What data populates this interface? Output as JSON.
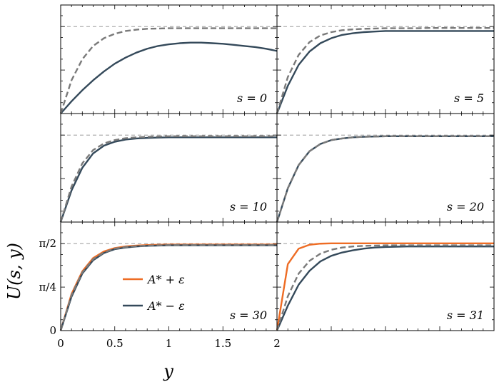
{
  "chart_data": {
    "type": "line",
    "xlabel": "y",
    "ylabel": "U(s, y)",
    "xlim": [
      0,
      2
    ],
    "ylim": [
      0,
      1.96
    ],
    "x_ticks": [
      {
        "value": 0,
        "label": "0"
      },
      {
        "value": 0.5,
        "label": "0.5"
      },
      {
        "value": 1,
        "label": "1"
      },
      {
        "value": 1.5,
        "label": "1.5"
      },
      {
        "value": 2,
        "label": "2"
      }
    ],
    "y_ticks": [
      {
        "value": 0,
        "label": "0"
      },
      {
        "value": 0.785,
        "label": "π/4"
      },
      {
        "value": 1.571,
        "label": "π/2"
      }
    ],
    "reference_line": 1.571,
    "colors": {
      "plus": "#ee6c24",
      "minus": "#34495a",
      "dashed": "#7a7a7a",
      "reference": "#8a8a8a"
    },
    "legend": {
      "placement": "lower-left of bottom-left panel",
      "entries": [
        {
          "label": "A* + ε",
          "color": "#ee6c24"
        },
        {
          "label": "A* − ε",
          "color": "#34495a"
        }
      ]
    },
    "x": [
      0,
      0.1,
      0.2,
      0.3,
      0.4,
      0.5,
      0.6,
      0.7,
      0.8,
      0.9,
      1.0,
      1.1,
      1.2,
      1.3,
      1.4,
      1.5,
      1.6,
      1.7,
      1.8,
      1.9,
      2.0
    ],
    "panels": [
      {
        "label": "s = 0",
        "series": [
          {
            "name": "A* − ε",
            "style": "solid",
            "values": [
              0,
              0.22,
              0.42,
              0.6,
              0.76,
              0.9,
              1.01,
              1.1,
              1.17,
              1.22,
              1.25,
              1.27,
              1.28,
              1.28,
              1.27,
              1.26,
              1.24,
              1.22,
              1.2,
              1.17,
              1.13
            ]
          },
          {
            "style": "dashed",
            "values": [
              0,
              0.6,
              0.98,
              1.22,
              1.36,
              1.44,
              1.49,
              1.515,
              1.53,
              1.535,
              1.54,
              1.54,
              1.54,
              1.54,
              1.54,
              1.54,
              1.54,
              1.54,
              1.54,
              1.54,
              1.54
            ]
          }
        ]
      },
      {
        "label": "s = 5",
        "series": [
          {
            "name": "A* − ε",
            "style": "solid",
            "values": [
              0,
              0.5,
              0.88,
              1.12,
              1.27,
              1.36,
              1.42,
              1.45,
              1.47,
              1.48,
              1.49,
              1.49,
              1.49,
              1.49,
              1.49,
              1.49,
              1.49,
              1.49,
              1.49,
              1.49,
              1.49
            ]
          },
          {
            "style": "dashed",
            "values": [
              0,
              0.66,
              1.06,
              1.29,
              1.41,
              1.47,
              1.505,
              1.52,
              1.53,
              1.535,
              1.54,
              1.54,
              1.54,
              1.54,
              1.545,
              1.545,
              1.545,
              1.545,
              1.545,
              1.545,
              1.545
            ]
          }
        ]
      },
      {
        "label": "s = 10",
        "series": [
          {
            "name": "A* − ε",
            "style": "solid",
            "values": [
              0,
              0.57,
              0.98,
              1.24,
              1.38,
              1.45,
              1.49,
              1.51,
              1.52,
              1.525,
              1.53,
              1.53,
              1.53,
              1.53,
              1.53,
              1.53,
              1.53,
              1.53,
              1.53,
              1.53,
              1.53
            ]
          },
          {
            "style": "dashed",
            "values": [
              0,
              0.64,
              1.06,
              1.3,
              1.42,
              1.48,
              1.515,
              1.53,
              1.54,
              1.545,
              1.55,
              1.55,
              1.55,
              1.55,
              1.55,
              1.55,
              1.55,
              1.55,
              1.55,
              1.55,
              1.55
            ]
          }
        ]
      },
      {
        "label": "s = 20",
        "series": [
          {
            "name": "A* − ε",
            "style": "solid",
            "values": [
              0,
              0.61,
              1.03,
              1.28,
              1.41,
              1.48,
              1.51,
              1.53,
              1.54,
              1.545,
              1.55,
              1.55,
              1.55,
              1.55,
              1.55,
              1.55,
              1.55,
              1.55,
              1.55,
              1.55,
              1.55
            ]
          },
          {
            "style": "dashed",
            "values": [
              0,
              0.61,
              1.03,
              1.28,
              1.41,
              1.48,
              1.51,
              1.53,
              1.54,
              1.545,
              1.55,
              1.55,
              1.55,
              1.55,
              1.55,
              1.55,
              1.55,
              1.55,
              1.55,
              1.55,
              1.55
            ]
          }
        ]
      },
      {
        "label": "s = 30",
        "series": [
          {
            "name": "A* + ε",
            "style": "solid",
            "values": [
              0,
              0.66,
              1.07,
              1.31,
              1.43,
              1.49,
              1.52,
              1.535,
              1.545,
              1.55,
              1.555,
              1.555,
              1.555,
              1.555,
              1.555,
              1.555,
              1.555,
              1.555,
              1.555,
              1.555,
              1.555
            ]
          },
          {
            "name": "A* − ε",
            "style": "solid",
            "values": [
              0,
              0.61,
              1.03,
              1.27,
              1.4,
              1.47,
              1.5,
              1.52,
              1.53,
              1.535,
              1.54,
              1.54,
              1.54,
              1.54,
              1.54,
              1.54,
              1.54,
              1.54,
              1.54,
              1.54,
              1.54
            ]
          },
          {
            "style": "dashed",
            "values": [
              0,
              0.64,
              1.05,
              1.29,
              1.41,
              1.48,
              1.51,
              1.525,
              1.535,
              1.54,
              1.545,
              1.545,
              1.545,
              1.545,
              1.545,
              1.545,
              1.545,
              1.545,
              1.545,
              1.545,
              1.545
            ]
          }
        ]
      },
      {
        "label": "s = 31",
        "series": [
          {
            "name": "A* + ε",
            "style": "solid",
            "values": [
              0,
              1.2,
              1.48,
              1.55,
              1.57,
              1.575,
              1.575,
              1.575,
              1.575,
              1.575,
              1.575,
              1.575,
              1.575,
              1.575,
              1.575,
              1.575,
              1.575,
              1.575,
              1.575,
              1.575,
              1.575
            ]
          },
          {
            "name": "A* − ε",
            "style": "solid",
            "values": [
              0,
              0.45,
              0.83,
              1.08,
              1.25,
              1.35,
              1.41,
              1.45,
              1.48,
              1.5,
              1.51,
              1.515,
              1.52,
              1.52,
              1.52,
              1.52,
              1.52,
              1.52,
              1.52,
              1.52,
              1.52
            ]
          },
          {
            "style": "dashed",
            "values": [
              0,
              0.62,
              1.03,
              1.26,
              1.39,
              1.46,
              1.5,
              1.52,
              1.53,
              1.535,
              1.54,
              1.54,
              1.54,
              1.54,
              1.54,
              1.54,
              1.54,
              1.54,
              1.54,
              1.54,
              1.54
            ]
          }
        ]
      }
    ]
  }
}
